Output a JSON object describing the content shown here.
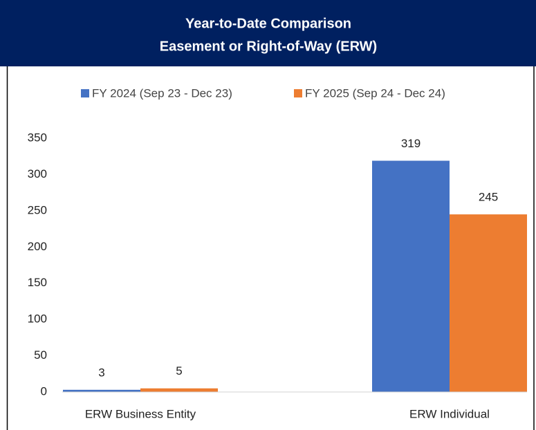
{
  "chart_data": {
    "type": "bar",
    "title": "Year-to-Date Comparison",
    "subtitle": "Easement or Right-of-Way (ERW)",
    "categories": [
      "ERW Business Entity",
      "ERW Individual"
    ],
    "series": [
      {
        "name": "FY 2024 (Sep 23 - Dec 23)",
        "color": "#4472c4",
        "values": [
          3,
          319
        ]
      },
      {
        "name": "FY 2025 (Sep 24 - Dec 24)",
        "color": "#ed7d31",
        "values": [
          5,
          245
        ]
      }
    ],
    "ylim": [
      0,
      350
    ],
    "yticks": [
      0,
      50,
      100,
      150,
      200,
      250,
      300,
      350
    ],
    "grid": false,
    "legend": "top"
  }
}
